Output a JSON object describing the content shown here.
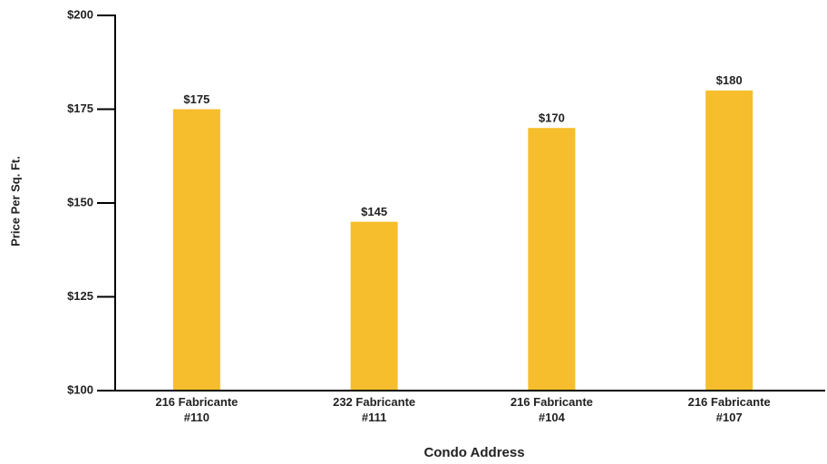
{
  "chart_data": {
    "type": "bar",
    "x_label": "Condo Address",
    "y_label": "Price Per Sq. Ft.",
    "categories": [
      "216 Fabricante #110",
      "232 Fabricante #111",
      "216 Fabricante #104",
      "216 Fabricante #107"
    ],
    "values": [
      175,
      145,
      170,
      180
    ],
    "value_labels": [
      "$175",
      "$145",
      "$170",
      "$180"
    ],
    "color": "#f6be2c",
    "ylim": [
      100,
      200
    ],
    "yticks": [
      {
        "value": 100,
        "label": "$100"
      },
      {
        "value": 125,
        "label": "$125"
      },
      {
        "value": 150,
        "label": "$150"
      },
      {
        "value": 175,
        "label": "$175"
      },
      {
        "value": 200,
        "label": "$200"
      }
    ],
    "grid": false
  }
}
